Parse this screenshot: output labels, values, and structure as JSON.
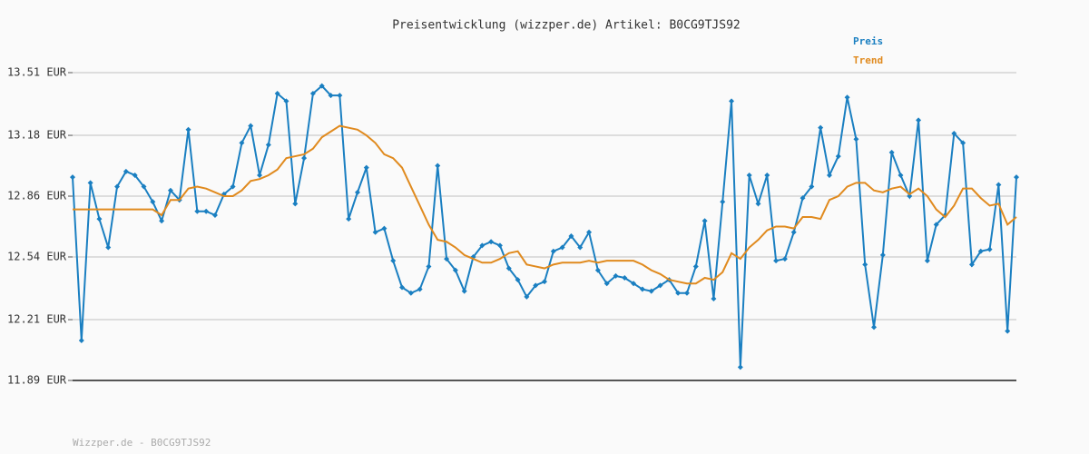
{
  "chart_data": {
    "type": "line",
    "title": "Preisentwicklung (wizzper.de) Artikel: B0CG9TJS92",
    "footer": "Wizzper.de - B0CG9TJS92",
    "ylim": [
      11.89,
      13.51
    ],
    "yticks": [
      {
        "value": 11.89,
        "label": "11.89 EUR"
      },
      {
        "value": 12.21,
        "label": "12.21 EUR"
      },
      {
        "value": 12.54,
        "label": "12.54 EUR"
      },
      {
        "value": 12.86,
        "label": "12.86 EUR"
      },
      {
        "value": 13.18,
        "label": "13.18 EUR"
      },
      {
        "value": 13.51,
        "label": "13.51 EUR"
      }
    ],
    "grid": true,
    "legend": "top-right",
    "series": [
      {
        "name": "Preis",
        "color": "#1a7fc1",
        "markers": true,
        "values": [
          12.96,
          12.1,
          12.93,
          12.74,
          12.59,
          12.91,
          12.99,
          12.97,
          12.91,
          12.83,
          12.73,
          12.89,
          12.84,
          13.21,
          12.78,
          12.78,
          12.76,
          12.87,
          12.91,
          13.14,
          13.23,
          12.97,
          13.13,
          13.4,
          13.36,
          12.82,
          13.06,
          13.4,
          13.44,
          13.39,
          13.39,
          12.74,
          12.88,
          13.01,
          12.67,
          12.69,
          12.52,
          12.38,
          12.35,
          12.37,
          12.49,
          13.02,
          12.53,
          12.47,
          12.36,
          12.54,
          12.6,
          12.62,
          12.6,
          12.48,
          12.42,
          12.33,
          12.39,
          12.41,
          12.57,
          12.59,
          12.65,
          12.59,
          12.67,
          12.47,
          12.4,
          12.44,
          12.43,
          12.4,
          12.37,
          12.36,
          12.39,
          12.42,
          12.35,
          12.35,
          12.49,
          12.73,
          12.32,
          12.83,
          13.36,
          11.96,
          12.97,
          12.82,
          12.97,
          12.52,
          12.53,
          12.67,
          12.85,
          12.91,
          13.22,
          12.97,
          13.07,
          13.38,
          13.16,
          12.5,
          12.17,
          12.55,
          13.09,
          12.97,
          12.86,
          13.26,
          12.52,
          12.71,
          12.76,
          13.19,
          13.14,
          12.5,
          12.57,
          12.58,
          12.92,
          12.15,
          12.96
        ]
      },
      {
        "name": "Trend",
        "color": "#e08a1e",
        "markers": false,
        "values": [
          12.79,
          12.79,
          12.79,
          12.79,
          12.79,
          12.79,
          12.79,
          12.79,
          12.79,
          12.79,
          12.76,
          12.84,
          12.84,
          12.9,
          12.91,
          12.9,
          12.88,
          12.86,
          12.86,
          12.89,
          12.94,
          12.95,
          12.97,
          13.0,
          13.06,
          13.07,
          13.08,
          13.11,
          13.17,
          13.2,
          13.23,
          13.22,
          13.21,
          13.18,
          13.14,
          13.08,
          13.06,
          13.01,
          12.91,
          12.81,
          12.71,
          12.63,
          12.62,
          12.59,
          12.55,
          12.53,
          12.51,
          12.51,
          12.53,
          12.56,
          12.57,
          12.5,
          12.49,
          12.48,
          12.5,
          12.51,
          12.51,
          12.51,
          12.52,
          12.51,
          12.52,
          12.52,
          12.52,
          12.52,
          12.5,
          12.47,
          12.45,
          12.42,
          12.41,
          12.4,
          12.4,
          12.43,
          12.42,
          12.46,
          12.56,
          12.53,
          12.59,
          12.63,
          12.68,
          12.7,
          12.7,
          12.69,
          12.75,
          12.75,
          12.74,
          12.84,
          12.86,
          12.91,
          12.93,
          12.93,
          12.89,
          12.88,
          12.9,
          12.91,
          12.87,
          12.9,
          12.86,
          12.79,
          12.75,
          12.81,
          12.9,
          12.9,
          12.85,
          12.81,
          12.82,
          12.71,
          12.75
        ]
      }
    ]
  }
}
